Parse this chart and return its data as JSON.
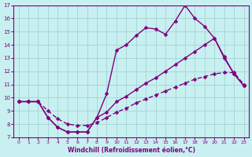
{
  "xlabel": "Windchill (Refroidissement éolien,°C)",
  "bg_color": "#c8f0f0",
  "line_color": "#800080",
  "grid_color": "#a8d8d8",
  "xlim": [
    -0.5,
    23.5
  ],
  "ylim": [
    7,
    17
  ],
  "xtick_labels": [
    "0",
    "1",
    "2",
    "3",
    "4",
    "5",
    "6",
    "7",
    "8",
    "9",
    "10",
    "11",
    "12",
    "13",
    "14",
    "15",
    "16",
    "17",
    "18",
    "19",
    "20",
    "21",
    "22",
    "23"
  ],
  "xticks": [
    0,
    1,
    2,
    3,
    4,
    5,
    6,
    7,
    8,
    9,
    10,
    11,
    12,
    13,
    14,
    15,
    16,
    17,
    18,
    19,
    20,
    21,
    22,
    23
  ],
  "yticks": [
    7,
    8,
    9,
    10,
    11,
    12,
    13,
    14,
    15,
    16,
    17
  ],
  "line1_x": [
    0,
    1,
    2,
    3,
    4,
    5,
    6,
    7,
    8,
    9,
    10,
    11,
    12,
    13,
    14,
    15,
    16,
    17,
    18,
    19,
    20,
    21,
    22,
    23
  ],
  "line1_y": [
    9.7,
    9.7,
    9.7,
    8.5,
    7.75,
    7.4,
    7.4,
    7.4,
    8.5,
    10.3,
    13.6,
    14.0,
    14.7,
    15.3,
    15.2,
    14.8,
    15.8,
    17.0,
    16.0,
    15.4,
    14.5,
    13.0,
    11.8,
    10.9
  ],
  "line2_x": [
    0,
    1,
    2,
    3,
    4,
    5,
    6,
    7,
    8,
    9,
    10,
    11,
    12,
    13,
    14,
    15,
    16,
    17,
    18,
    19,
    20,
    21,
    22,
    23
  ],
  "line2_y": [
    9.7,
    9.7,
    9.7,
    8.5,
    7.75,
    7.4,
    7.4,
    7.4,
    8.5,
    8.9,
    9.7,
    10.1,
    10.6,
    11.1,
    11.5,
    12.0,
    12.5,
    13.0,
    13.5,
    14.0,
    14.5,
    13.1,
    11.8,
    10.9
  ],
  "line3_x": [
    0,
    1,
    2,
    3,
    4,
    5,
    6,
    7,
    8,
    9,
    10,
    11,
    12,
    13,
    14,
    15,
    16,
    17,
    18,
    19,
    20,
    21,
    22,
    23
  ],
  "line3_y": [
    9.7,
    9.7,
    9.7,
    9.0,
    8.4,
    8.0,
    7.9,
    7.9,
    8.1,
    8.5,
    8.9,
    9.2,
    9.6,
    9.9,
    10.2,
    10.5,
    10.8,
    11.1,
    11.4,
    11.6,
    11.8,
    11.9,
    11.9,
    11.0
  ],
  "marker": "D",
  "markersize": 2.5,
  "linewidth": 1.0
}
